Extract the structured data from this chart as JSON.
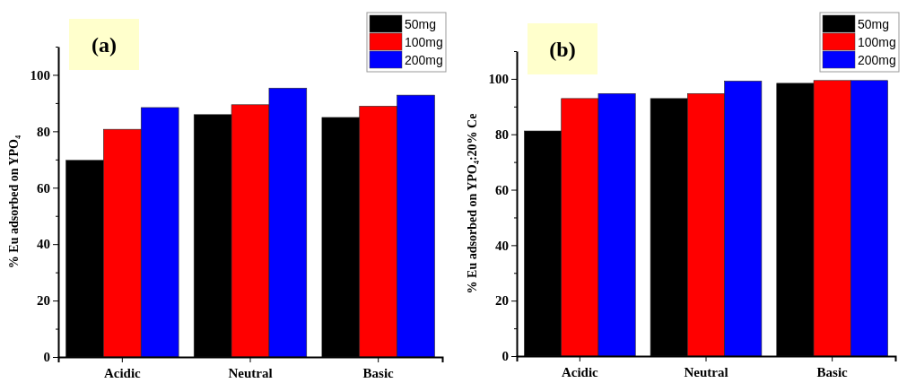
{
  "chart_data": [
    {
      "type": "bar",
      "title": "(a)",
      "ylabel": "% Eu adsorbed on YPO₄",
      "categories": [
        "Acidic",
        "Neutral",
        "Basic"
      ],
      "series": [
        {
          "name": "50mg",
          "color": "#000000",
          "values": [
            69.7,
            85.9,
            84.9
          ]
        },
        {
          "name": "100mg",
          "color": "#ff0000",
          "values": [
            80.7,
            89.4,
            88.9
          ]
        },
        {
          "name": "200mg",
          "color": "#0000ff",
          "values": [
            88.4,
            95.3,
            92.8
          ]
        }
      ],
      "ylim": [
        0,
        110
      ],
      "yticks": [
        0,
        {
          "value": 10,
          "label": null
        },
        20,
        {
          "value": 30,
          "label": null
        },
        40,
        {
          "value": 50,
          "label": null
        },
        60,
        {
          "value": 70,
          "label": null
        },
        80,
        {
          "value": 90,
          "label": null
        },
        100,
        {
          "value": 110,
          "label": null
        }
      ],
      "grid": false,
      "legend": "top right"
    },
    {
      "type": "bar",
      "title": "(b)",
      "ylabel": "% Eu adsorbed on YPO₄:20% Ce",
      "categories": [
        "Acidic",
        "Neutral",
        "Basic"
      ],
      "series": [
        {
          "name": "50mg",
          "color": "#000000",
          "values": [
            81.2,
            92.9,
            98.4
          ]
        },
        {
          "name": "100mg",
          "color": "#ff0000",
          "values": [
            92.9,
            94.7,
            99.4
          ]
        },
        {
          "name": "200mg",
          "color": "#0000ff",
          "values": [
            94.7,
            99.2,
            99.4
          ]
        }
      ],
      "ylim": [
        0,
        110
      ],
      "yticks": [
        0,
        {
          "value": 10,
          "label": null
        },
        20,
        {
          "value": 30,
          "label": null
        },
        40,
        {
          "value": 50,
          "label": null
        },
        60,
        {
          "value": 70,
          "label": null
        },
        80,
        {
          "value": 90,
          "label": null
        },
        100,
        {
          "value": 110,
          "label": null
        }
      ],
      "grid": false,
      "legend": "top right"
    }
  ]
}
